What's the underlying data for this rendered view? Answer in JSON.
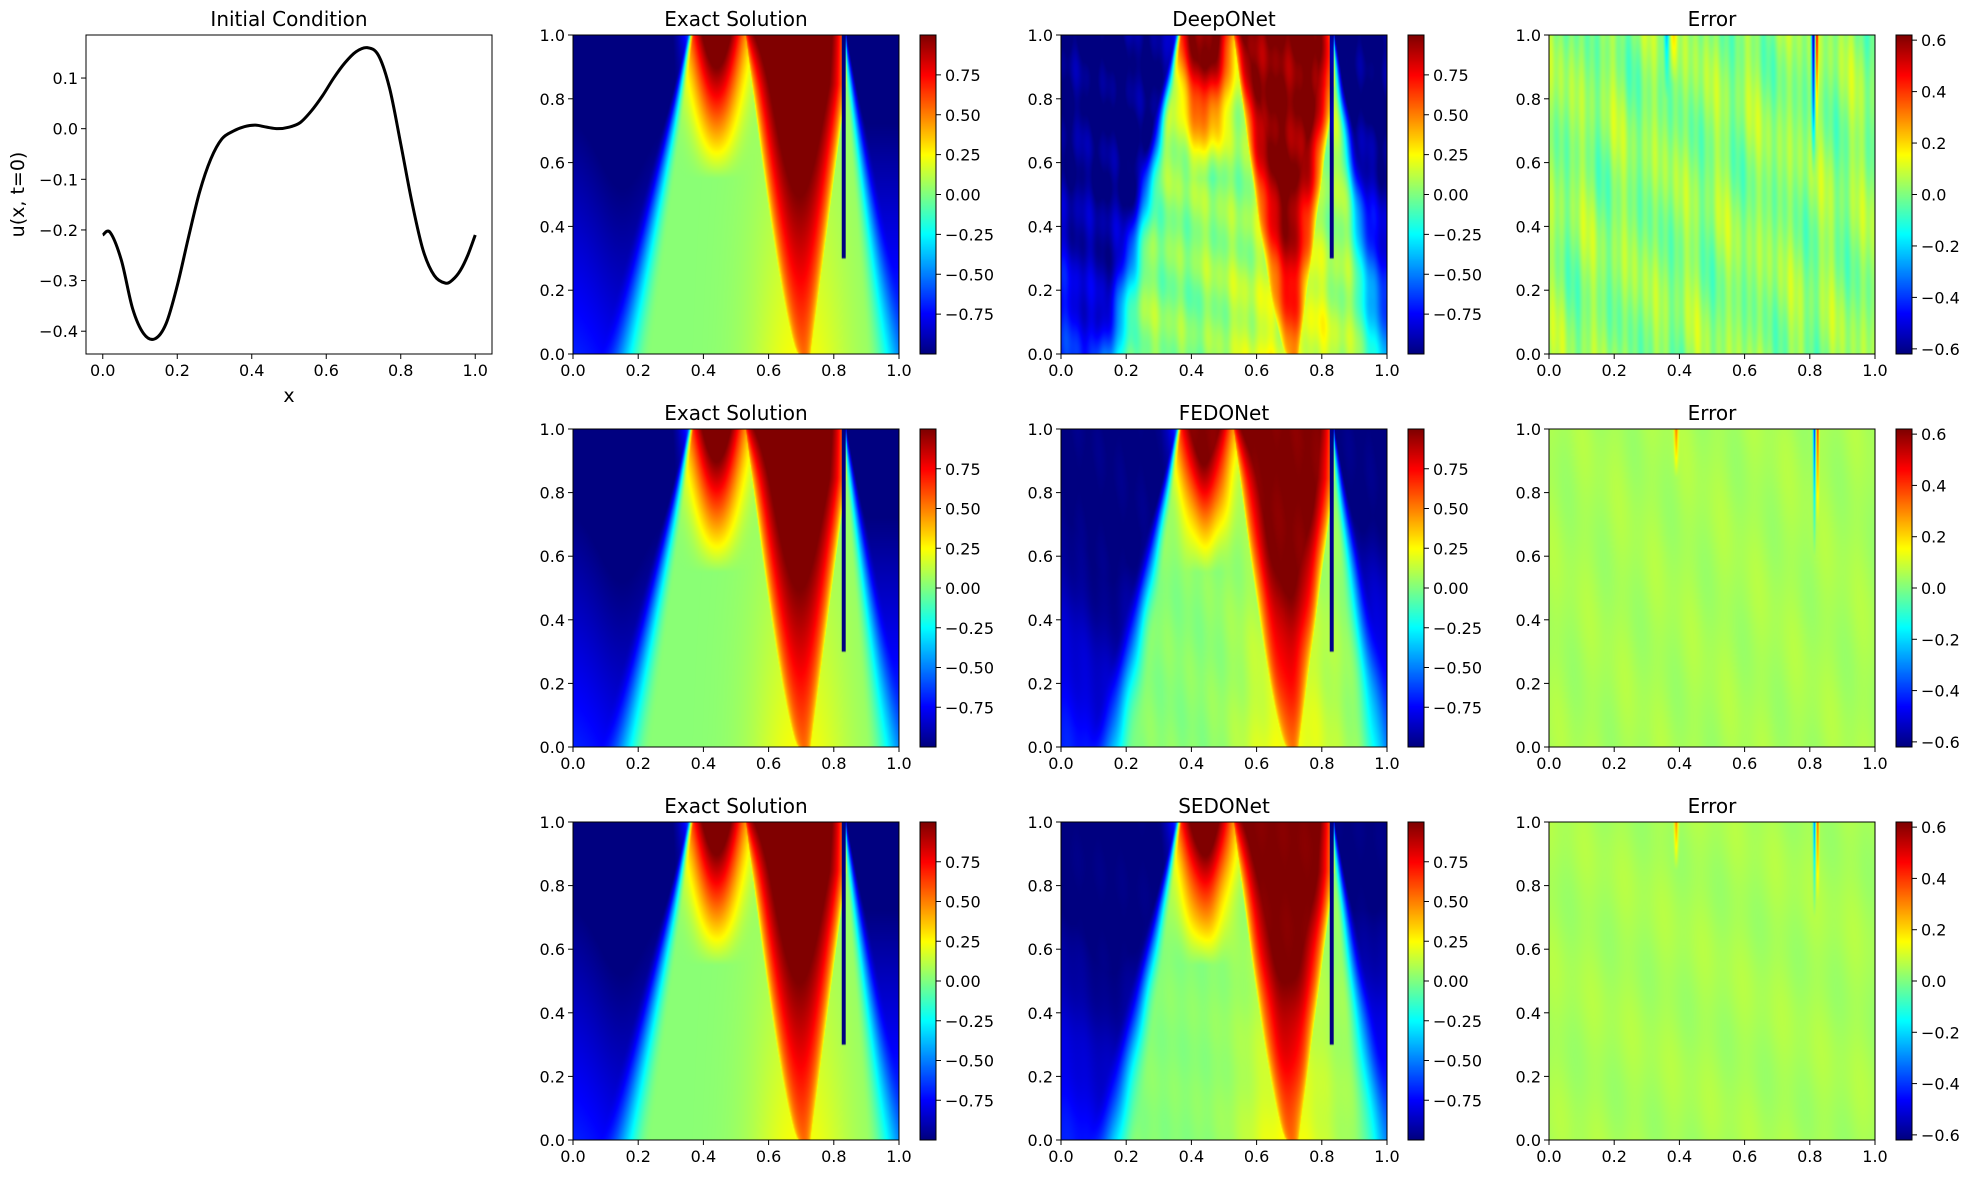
{
  "colors": {
    "curve": "#000000",
    "axes": "#000000",
    "colormap": "jet"
  },
  "chart_data": [
    {
      "id": "ic",
      "type": "line",
      "title": "Initial Condition",
      "xlabel": "x",
      "ylabel": "u(x, t=0)",
      "xlim": [
        -0.045,
        1.045
      ],
      "ylim": [
        -0.445,
        0.185
      ],
      "xticks": [
        0.0,
        0.2,
        0.4,
        0.6,
        0.8,
        1.0
      ],
      "xtick_labels": [
        "0.0",
        "0.2",
        "0.4",
        "0.6",
        "0.8",
        "1.0"
      ],
      "yticks": [
        0.1,
        0.0,
        -0.1,
        -0.2,
        -0.3,
        -0.4
      ],
      "ytick_labels": [
        "0.1",
        "0.0",
        "−0.1",
        "−0.2",
        "−0.3",
        "−0.4"
      ],
      "x": [
        0.0,
        0.02,
        0.05,
        0.08,
        0.11,
        0.14,
        0.17,
        0.2,
        0.23,
        0.26,
        0.29,
        0.32,
        0.35,
        0.38,
        0.41,
        0.44,
        0.47,
        0.5,
        0.53,
        0.56,
        0.59,
        0.62,
        0.65,
        0.68,
        0.71,
        0.74,
        0.77,
        0.8,
        0.83,
        0.86,
        0.89,
        0.92,
        0.94,
        0.96,
        0.98,
        1.0
      ],
      "y": [
        -0.21,
        -0.205,
        -0.26,
        -0.355,
        -0.405,
        -0.415,
        -0.385,
        -0.31,
        -0.215,
        -0.125,
        -0.06,
        -0.02,
        -0.005,
        0.004,
        0.007,
        0.003,
        0.0,
        0.003,
        0.012,
        0.035,
        0.065,
        0.1,
        0.13,
        0.152,
        0.16,
        0.145,
        0.08,
        -0.03,
        -0.145,
        -0.24,
        -0.29,
        -0.305,
        -0.298,
        -0.28,
        -0.25,
        -0.21
      ]
    },
    {
      "id": "r1c1",
      "type": "heatmap",
      "title": "Exact Solution",
      "field": "exact",
      "xlim": [
        0,
        1
      ],
      "ylim": [
        0,
        1
      ],
      "xtick_labels": [
        "0.0",
        "0.2",
        "0.4",
        "0.6",
        "0.8",
        "1.0"
      ],
      "ytick_labels": [
        "0.0",
        "0.2",
        "0.4",
        "0.6",
        "0.8",
        "1.0"
      ],
      "vmin": -1.0,
      "vmax": 1.0,
      "colorbar_ticks": [
        0.75,
        0.5,
        0.25,
        0.0,
        -0.25,
        -0.5,
        -0.75
      ],
      "colorbar_tick_labels": [
        "0.75",
        "0.50",
        "0.25",
        "0.00",
        "−0.25",
        "−0.50",
        "−0.75"
      ]
    },
    {
      "id": "r1c2",
      "type": "heatmap",
      "title": "DeepONet",
      "field": "deeponet",
      "xlim": [
        0,
        1
      ],
      "ylim": [
        0,
        1
      ],
      "xtick_labels": [
        "0.0",
        "0.2",
        "0.4",
        "0.6",
        "0.8",
        "1.0"
      ],
      "ytick_labels": [
        "0.0",
        "0.2",
        "0.4",
        "0.6",
        "0.8",
        "1.0"
      ],
      "vmin": -1.0,
      "vmax": 1.0,
      "colorbar_ticks": [
        0.75,
        0.5,
        0.25,
        0.0,
        -0.25,
        -0.5,
        -0.75
      ],
      "colorbar_tick_labels": [
        "0.75",
        "0.50",
        "0.25",
        "0.00",
        "−0.25",
        "−0.50",
        "−0.75"
      ]
    },
    {
      "id": "r1c3",
      "type": "heatmap",
      "title": "Error",
      "field": "error_deeponet",
      "xlim": [
        0,
        1
      ],
      "ylim": [
        0,
        1
      ],
      "xtick_labels": [
        "0.0",
        "0.2",
        "0.4",
        "0.6",
        "0.8",
        "1.0"
      ],
      "ytick_labels": [
        "0.0",
        "0.2",
        "0.4",
        "0.6",
        "0.8",
        "1.0"
      ],
      "vmin": -0.62,
      "vmax": 0.62,
      "colorbar_ticks": [
        0.6,
        0.4,
        0.2,
        0.0,
        -0.2,
        -0.4,
        -0.6
      ],
      "colorbar_tick_labels": [
        "0.6",
        "0.4",
        "0.2",
        "0.0",
        "−0.2",
        "−0.4",
        "−0.6"
      ]
    },
    {
      "id": "r2c1",
      "type": "heatmap",
      "title": "Exact Solution",
      "field": "exact",
      "xlim": [
        0,
        1
      ],
      "ylim": [
        0,
        1
      ],
      "xtick_labels": [
        "0.0",
        "0.2",
        "0.4",
        "0.6",
        "0.8",
        "1.0"
      ],
      "ytick_labels": [
        "0.0",
        "0.2",
        "0.4",
        "0.6",
        "0.8",
        "1.0"
      ],
      "vmin": -1.0,
      "vmax": 1.0,
      "colorbar_ticks": [
        0.75,
        0.5,
        0.25,
        0.0,
        -0.25,
        -0.5,
        -0.75
      ],
      "colorbar_tick_labels": [
        "0.75",
        "0.50",
        "0.25",
        "0.00",
        "−0.25",
        "−0.50",
        "−0.75"
      ]
    },
    {
      "id": "r2c2",
      "type": "heatmap",
      "title": "FEDONet",
      "field": "fedonet",
      "xlim": [
        0,
        1
      ],
      "ylim": [
        0,
        1
      ],
      "xtick_labels": [
        "0.0",
        "0.2",
        "0.4",
        "0.6",
        "0.8",
        "1.0"
      ],
      "ytick_labels": [
        "0.0",
        "0.2",
        "0.4",
        "0.6",
        "0.8",
        "1.0"
      ],
      "vmin": -1.0,
      "vmax": 1.0,
      "colorbar_ticks": [
        0.75,
        0.5,
        0.25,
        0.0,
        -0.25,
        -0.5,
        -0.75
      ],
      "colorbar_tick_labels": [
        "0.75",
        "0.50",
        "0.25",
        "0.00",
        "−0.25",
        "−0.50",
        "−0.75"
      ]
    },
    {
      "id": "r2c3",
      "type": "heatmap",
      "title": "Error",
      "field": "error_fedonet",
      "xlim": [
        0,
        1
      ],
      "ylim": [
        0,
        1
      ],
      "xtick_labels": [
        "0.0",
        "0.2",
        "0.4",
        "0.6",
        "0.8",
        "1.0"
      ],
      "ytick_labels": [
        "0.0",
        "0.2",
        "0.4",
        "0.6",
        "0.8",
        "1.0"
      ],
      "vmin": -0.62,
      "vmax": 0.62,
      "colorbar_ticks": [
        0.6,
        0.4,
        0.2,
        0.0,
        -0.2,
        -0.4,
        -0.6
      ],
      "colorbar_tick_labels": [
        "0.6",
        "0.4",
        "0.2",
        "0.0",
        "−0.2",
        "−0.4",
        "−0.6"
      ]
    },
    {
      "id": "r3c1",
      "type": "heatmap",
      "title": "Exact Solution",
      "field": "exact",
      "xlim": [
        0,
        1
      ],
      "ylim": [
        0,
        1
      ],
      "xtick_labels": [
        "0.0",
        "0.2",
        "0.4",
        "0.6",
        "0.8",
        "1.0"
      ],
      "ytick_labels": [
        "0.0",
        "0.2",
        "0.4",
        "0.6",
        "0.8",
        "1.0"
      ],
      "vmin": -1.0,
      "vmax": 1.0,
      "colorbar_ticks": [
        0.75,
        0.5,
        0.25,
        0.0,
        -0.25,
        -0.5,
        -0.75
      ],
      "colorbar_tick_labels": [
        "0.75",
        "0.50",
        "0.25",
        "0.00",
        "−0.25",
        "−0.50",
        "−0.75"
      ]
    },
    {
      "id": "r3c2",
      "type": "heatmap",
      "title": "SEDONet",
      "field": "sedonet",
      "xlim": [
        0,
        1
      ],
      "ylim": [
        0,
        1
      ],
      "xtick_labels": [
        "0.0",
        "0.2",
        "0.4",
        "0.6",
        "0.8",
        "1.0"
      ],
      "ytick_labels": [
        "0.0",
        "0.2",
        "0.4",
        "0.6",
        "0.8",
        "1.0"
      ],
      "vmin": -1.0,
      "vmax": 1.0,
      "colorbar_ticks": [
        0.75,
        0.5,
        0.25,
        0.0,
        -0.25,
        -0.5,
        -0.75
      ],
      "colorbar_tick_labels": [
        "0.75",
        "0.50",
        "0.25",
        "0.00",
        "−0.25",
        "−0.50",
        "−0.75"
      ]
    },
    {
      "id": "r3c3",
      "type": "heatmap",
      "title": "Error",
      "field": "error_sedonet",
      "xlim": [
        0,
        1
      ],
      "ylim": [
        0,
        1
      ],
      "xtick_labels": [
        "0.0",
        "0.2",
        "0.4",
        "0.6",
        "0.8",
        "1.0"
      ],
      "ytick_labels": [
        "0.0",
        "0.2",
        "0.4",
        "0.6",
        "0.8",
        "1.0"
      ],
      "vmin": -0.62,
      "vmax": 0.62,
      "colorbar_ticks": [
        0.6,
        0.4,
        0.2,
        0.0,
        -0.2,
        -0.4,
        -0.6
      ],
      "colorbar_tick_labels": [
        "0.6",
        "0.4",
        "0.2",
        "0.0",
        "−0.2",
        "−0.4",
        "−0.6"
      ]
    }
  ]
}
